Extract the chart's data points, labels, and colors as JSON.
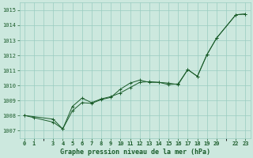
{
  "title": "Graphe pression niveau de la mer (hPa)",
  "background_color": "#cce8de",
  "grid_color": "#99ccc0",
  "line_color": "#1a5c2a",
  "marker_color": "#1a5c2a",
  "xlim": [
    -0.5,
    23.5
  ],
  "ylim": [
    1006.5,
    1015.5
  ],
  "xticks": [
    0,
    1,
    3,
    4,
    5,
    6,
    7,
    8,
    9,
    10,
    11,
    12,
    13,
    14,
    15,
    16,
    17,
    18,
    19,
    20,
    22,
    23
  ],
  "yticks": [
    1007,
    1008,
    1009,
    1010,
    1011,
    1012,
    1013,
    1014,
    1015
  ],
  "series1_x": [
    0,
    1,
    3,
    4,
    5,
    6,
    7,
    8,
    9,
    10,
    11,
    12,
    13,
    14,
    15,
    16,
    17,
    18,
    19,
    20,
    22,
    23
  ],
  "series1_y": [
    1008.0,
    1007.85,
    1007.55,
    1007.1,
    1008.3,
    1008.85,
    1008.8,
    1009.05,
    1009.2,
    1009.75,
    1010.15,
    1010.35,
    1010.2,
    1010.2,
    1010.15,
    1010.05,
    1011.05,
    1010.6,
    1012.05,
    1013.15,
    1014.7,
    1014.75
  ],
  "series2_x": [
    0,
    3,
    4,
    5,
    6,
    7,
    8,
    9,
    10,
    11,
    12,
    13,
    14,
    15,
    16,
    17,
    18,
    19,
    20,
    22,
    23
  ],
  "series2_y": [
    1008.0,
    1007.75,
    1007.1,
    1008.6,
    1009.15,
    1008.85,
    1009.1,
    1009.25,
    1009.5,
    1009.85,
    1010.2,
    1010.25,
    1010.2,
    1010.05,
    1010.1,
    1011.05,
    1010.6,
    1012.05,
    1013.15,
    1014.7,
    1014.75
  ]
}
